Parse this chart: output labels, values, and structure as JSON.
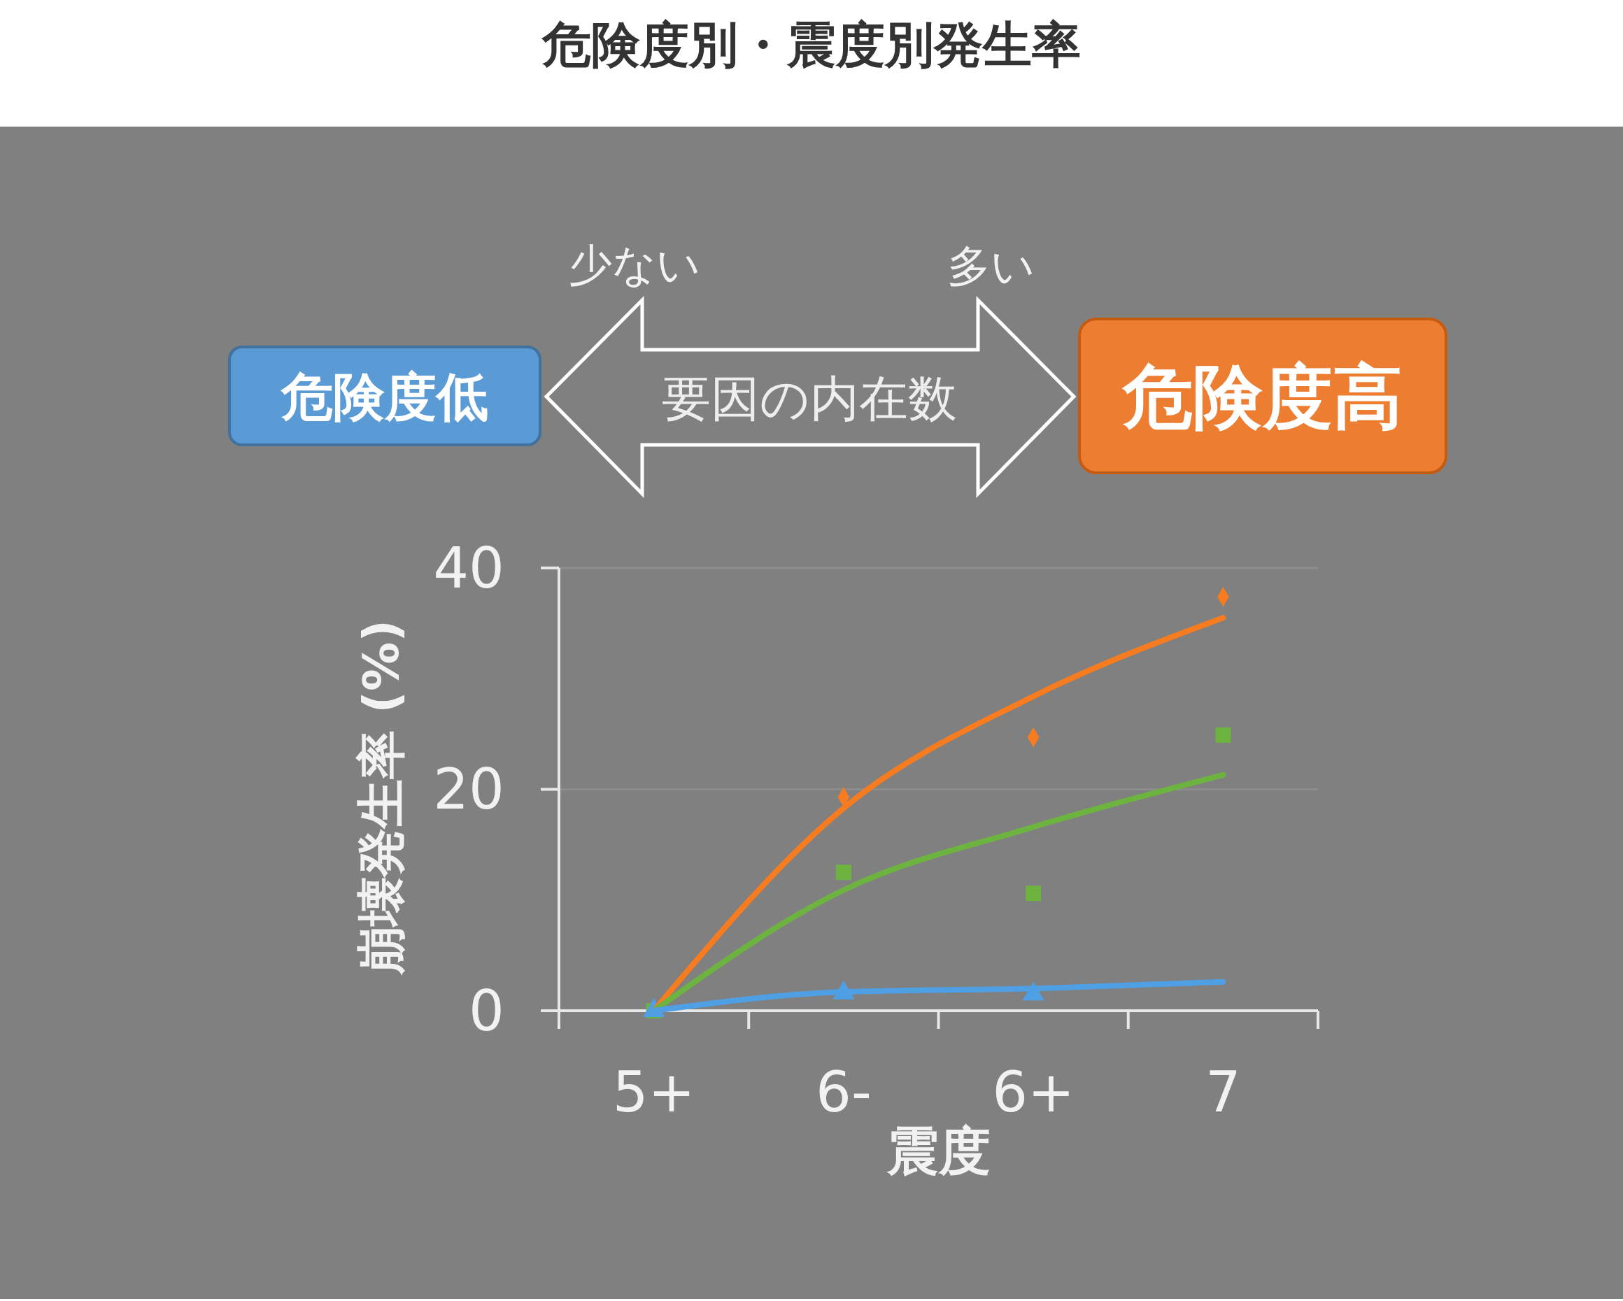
{
  "chart_data": {
    "type": "line",
    "title": "危険度別・震度別発生率",
    "xlabel": "震度",
    "ylabel": "崩壊発生率 (%)",
    "annotations": [
      "少ない",
      "多い",
      "危険度低",
      "要因の内在数",
      "危険度高"
    ],
    "categories": [
      "5+",
      "6-",
      "6+",
      "7"
    ],
    "series": [
      {
        "type": "scatter",
        "marker": "diamond",
        "color": "#f77b1f",
        "values": [
          null,
          19.3,
          24.7,
          37.4
        ]
      },
      {
        "type": "scatter",
        "marker": "square",
        "color": "#6db33f",
        "values": [
          0,
          12.5,
          10.6,
          24.9
        ]
      },
      {
        "type": "scatter",
        "marker": "triangle",
        "color": "#4e9fe3",
        "values": [
          0,
          1.6,
          1.5,
          null
        ]
      },
      {
        "color": "#f77b1f",
        "values": [
          0,
          18.3,
          28.4,
          35.5
        ]
      },
      {
        "color": "#6db33f",
        "values": [
          0,
          10.9,
          16.6,
          21.3
        ]
      },
      {
        "color": "#4e9fe3",
        "values": [
          0,
          1.7,
          2.0,
          2.6
        ]
      }
    ],
    "ylim": [
      0,
      40
    ],
    "yticks": [
      0,
      20,
      40
    ],
    "grid": "y"
  }
}
